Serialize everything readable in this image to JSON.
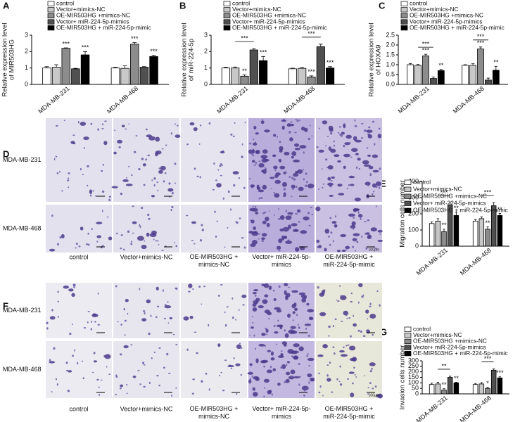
{
  "chart_data": [
    {
      "type": "bar",
      "label": "A",
      "ylabel": [
        "Relative expression level",
        "of MIR503HG"
      ],
      "categories": [
        "MDA-MB-231",
        "MDA-MB-468"
      ],
      "series": [
        {
          "name": "control",
          "color": "#ffffff",
          "values": [
            1.0,
            1.0
          ],
          "errors": [
            0.08,
            0.05
          ]
        },
        {
          "name": "Vector+mimics-NC",
          "color": "#c8c8c8",
          "values": [
            1.05,
            0.98
          ],
          "errors": [
            0.15,
            0.15
          ]
        },
        {
          "name": "OE-MIR503HG +mimics-NC",
          "color": "#8c8c8c",
          "values": [
            2.2,
            2.45
          ],
          "errors": [
            0.03,
            0.1
          ]
        },
        {
          "name": "Vector+ miR-224-5p-mimics",
          "color": "#505050",
          "values": [
            0.95,
            1.05
          ],
          "errors": [
            0.03,
            0.03
          ]
        },
        {
          "name": "OE-MIR503HG + miR-224-5p-mimic",
          "color": "#000000",
          "values": [
            1.8,
            1.7
          ],
          "errors": [
            0.2,
            0.08
          ]
        }
      ],
      "ylim": [
        0,
        3
      ],
      "yticks": [
        0,
        1,
        2,
        3
      ],
      "annotations": [
        {
          "text": "***",
          "category": 0,
          "series": [
            2
          ]
        },
        {
          "text": "***",
          "category": 0,
          "series": [
            4
          ]
        },
        {
          "text": "***",
          "category": 1,
          "series": [
            2
          ]
        },
        {
          "text": "***",
          "category": 1,
          "series": [
            4
          ]
        }
      ]
    },
    {
      "type": "bar",
      "label": "B",
      "ylabel": [
        "Relative expression level",
        "of miR-224-5p"
      ],
      "categories": [
        "MDA-MB-231",
        "MDA-MB-468"
      ],
      "series": [
        {
          "name": "control",
          "color": "#ffffff",
          "values": [
            1.0,
            0.95
          ],
          "errors": [
            0.05,
            0.04
          ]
        },
        {
          "name": "Vector+mimics-NC",
          "color": "#c8c8c8",
          "values": [
            1.0,
            0.98
          ],
          "errors": [
            0.06,
            0.05
          ]
        },
        {
          "name": "OE-MIR503HG +mimics-NC",
          "color": "#8c8c8c",
          "values": [
            0.5,
            0.45
          ],
          "errors": [
            0.08,
            0.07
          ]
        },
        {
          "name": "Vector+ miR-224-5p-mimics",
          "color": "#505050",
          "values": [
            2.1,
            2.3
          ],
          "errors": [
            0.08,
            0.15
          ]
        },
        {
          "name": "OE-MIR503HG + miR-224-5p-mimic",
          "color": "#000000",
          "values": [
            1.45,
            1.0
          ],
          "errors": [
            0.25,
            0.08
          ]
        }
      ],
      "ylim": [
        0,
        3
      ],
      "yticks": [
        0,
        1,
        2,
        3
      ],
      "annotations": [
        {
          "text": "**",
          "category": 0,
          "series": [
            2
          ]
        },
        {
          "text": "***",
          "category": 0,
          "series": [
            1,
            3
          ]
        },
        {
          "text": "***",
          "category": 0,
          "series": [
            4
          ]
        },
        {
          "text": "***",
          "category": 1,
          "series": [
            2
          ]
        },
        {
          "text": "***",
          "category": 1,
          "series": [
            1,
            3
          ]
        },
        {
          "text": "***",
          "category": 1,
          "series": [
            4
          ]
        }
      ]
    },
    {
      "type": "bar",
      "label": "C",
      "ylabel": [
        "Relative expression level",
        "of HOXA9"
      ],
      "categories": [
        "MDA-MB-231",
        "MDA-MB-468"
      ],
      "series": [
        {
          "name": "control",
          "color": "#ffffff",
          "values": [
            1.0,
            0.97
          ],
          "errors": [
            0.06,
            0.03
          ]
        },
        {
          "name": "Vector+mimics-NC",
          "color": "#c8c8c8",
          "values": [
            0.97,
            0.97
          ],
          "errors": [
            0.04,
            0.08
          ]
        },
        {
          "name": "OE-MIR503HG +mimics-NC",
          "color": "#8c8c8c",
          "values": [
            1.45,
            1.8
          ],
          "errors": [
            0.08,
            0.1
          ]
        },
        {
          "name": "Vector+ miR-224-5p-mimics",
          "color": "#505050",
          "values": [
            0.3,
            0.22
          ],
          "errors": [
            0.08,
            0.1
          ]
        },
        {
          "name": "OE-MIR503HG + miR-224-5p-mimic",
          "color": "#000000",
          "values": [
            0.7,
            0.72
          ],
          "errors": [
            0.06,
            0.2
          ]
        }
      ],
      "ylim": [
        0,
        2.5
      ],
      "yticks": [
        {
          "value": 0,
          "label": "0.0"
        },
        0.5,
        {
          "value": 1,
          "label": "1.0"
        },
        1.5,
        {
          "value": 2,
          "label": "2.0"
        },
        2.5
      ],
      "annotations": [
        {
          "text": "***",
          "category": 0,
          "series": [
            2
          ]
        },
        {
          "text": "***",
          "category": 0,
          "series": [
            1,
            3
          ]
        },
        {
          "text": "**",
          "category": 0,
          "series": [
            4
          ]
        },
        {
          "text": "***",
          "category": 1,
          "series": [
            2
          ]
        },
        {
          "text": "***",
          "category": 1,
          "series": [
            1,
            3
          ]
        },
        {
          "text": "**",
          "category": 1,
          "series": [
            4
          ]
        }
      ]
    },
    {
      "type": "bar",
      "label": "E",
      "ylabel": [
        "Migration cells number"
      ],
      "categories": [
        "MDA-MB-231",
        "MDA-MB-468"
      ],
      "series": [
        {
          "name": "control",
          "color": "#ffffff",
          "values": [
            140,
            155
          ],
          "errors": [
            10,
            10
          ]
        },
        {
          "name": "Vector+mimics-NC",
          "color": "#c8c8c8",
          "values": [
            155,
            170
          ],
          "errors": [
            15,
            12
          ]
        },
        {
          "name": "OE-MIR503HG +mimics-NC",
          "color": "#8c8c8c",
          "values": [
            90,
            105
          ],
          "errors": [
            15,
            15
          ]
        },
        {
          "name": "Vector+ miR-224-5p-mimics",
          "color": "#505050",
          "values": [
            255,
            250
          ],
          "errors": [
            12,
            20
          ]
        },
        {
          "name": "OE-MIR503HG + miR-224-5p-mimic",
          "color": "#000000",
          "values": [
            190,
            190
          ],
          "errors": [
            20,
            12
          ]
        }
      ],
      "ylim": [
        0,
        400
      ],
      "yticks": [
        0,
        100,
        200,
        300,
        400
      ],
      "annotations": [
        {
          "text": "**",
          "category": 0,
          "series": [
            2
          ]
        },
        {
          "text": "***",
          "category": 0,
          "series": [
            1,
            3
          ]
        },
        {
          "text": "**",
          "category": 0,
          "series": [
            4
          ]
        },
        {
          "text": "**",
          "category": 1,
          "series": [
            2
          ]
        },
        {
          "text": "***",
          "category": 1,
          "series": [
            1,
            3
          ]
        },
        {
          "text": "**",
          "category": 1,
          "series": [
            4
          ]
        }
      ]
    },
    {
      "type": "bar",
      "label": "G",
      "ylabel": [
        "Invasion cells number"
      ],
      "categories": [
        "MDA-MB-231",
        "MDA-MB-468"
      ],
      "series": [
        {
          "name": "control",
          "color": "#ffffff",
          "values": [
            85,
            85
          ],
          "errors": [
            12,
            10
          ]
        },
        {
          "name": "Vector+mimics-NC",
          "color": "#c8c8c8",
          "values": [
            90,
            90
          ],
          "errors": [
            15,
            12
          ]
        },
        {
          "name": "OE-MIR503HG +mimics-NC",
          "color": "#8c8c8c",
          "values": [
            35,
            50
          ],
          "errors": [
            12,
            10
          ]
        },
        {
          "name": "Vector+ miR-224-5p-mimics",
          "color": "#505050",
          "values": [
            150,
            215
          ],
          "errors": [
            10,
            12
          ]
        },
        {
          "name": "OE-MIR503HG + miR-224-5p-mimic",
          "color": "#000000",
          "values": [
            100,
            145
          ],
          "errors": [
            6,
            10
          ]
        }
      ],
      "ylim": [
        0,
        300
      ],
      "yticks": [
        0,
        50,
        100,
        150,
        200,
        250,
        300
      ],
      "annotations": [
        {
          "text": "**",
          "category": 0,
          "series": [
            2
          ]
        },
        {
          "text": "**",
          "category": 0,
          "series": [
            1,
            3
          ]
        },
        {
          "text": "**",
          "category": 0,
          "series": [
            4
          ]
        },
        {
          "text": "*",
          "category": 1,
          "series": [
            2
          ]
        },
        {
          "text": "***",
          "category": 1,
          "series": [
            1,
            3
          ]
        },
        {
          "text": "***",
          "category": 1,
          "series": [
            4
          ]
        }
      ]
    }
  ],
  "panels": [
    {
      "label": "D",
      "rows": [
        "MDA-MB-231",
        "MDA-MB-468"
      ],
      "columns": [
        [
          "control"
        ],
        [
          "Vector+mimics-NC"
        ],
        [
          "OE-MIR503HG +",
          "mimics-NC"
        ],
        [
          "Vector+ miR-224-5p-",
          "mimics"
        ],
        [
          "OE-MIR503HG +",
          "miR-224-5p-mimic"
        ]
      ],
      "scale": "100μm"
    },
    {
      "label": "F",
      "rows": [
        "MDA-MB-231",
        "MDA-MB-468"
      ],
      "columns": [
        [
          "control"
        ],
        [
          "Vector+mimics-NC"
        ],
        [
          "OE-MIR503HG +",
          "mimics-NC"
        ],
        [
          "Vector+ miR-224-5p-",
          "mimics"
        ],
        [
          "OE-MIR503HG +",
          "miR-224-5p-mimic"
        ]
      ],
      "scale": "100μm"
    }
  ]
}
